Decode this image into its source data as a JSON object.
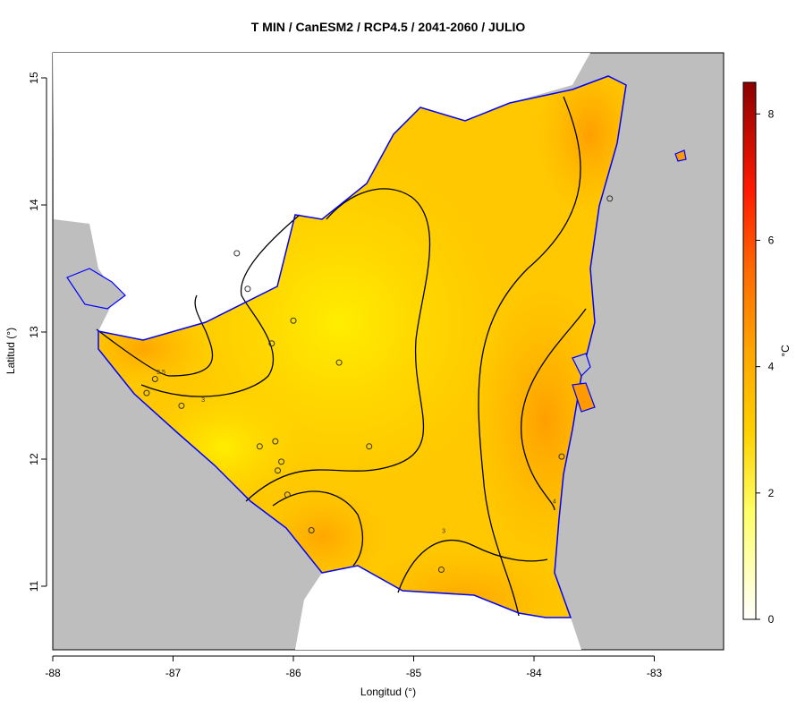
{
  "title": "T MIN / CanESM2 / RCP4.5 / 2041-2060 / JULIO",
  "xlabel": "Longitud (°)",
  "ylabel": "Latitud (°)",
  "colorbar_label": "°C",
  "colors": {
    "sea": "#bebebe",
    "coast": "#0000ff",
    "high": "#8b0000",
    "mid": "#ffa500",
    "low_mid": "#ffff00",
    "low": "#ffffff"
  },
  "chart_data": {
    "type": "heatmap",
    "title": "T MIN / CanESM2 / RCP4.5 / 2041-2060 / JULIO",
    "xlabel": "Longitud (°)",
    "ylabel": "Latitud (°)",
    "xlim": [
      -88,
      -82.4
    ],
    "ylim": [
      10.5,
      15.2
    ],
    "x_ticks": [
      -88,
      -87,
      -86,
      -85,
      -84,
      -83
    ],
    "y_ticks": [
      11,
      12,
      13,
      14,
      15
    ],
    "x_tick_labels": [
      "-88",
      "-87",
      "-86",
      "-85",
      "-84",
      "-83"
    ],
    "y_tick_labels": [
      "11",
      "12",
      "13",
      "14",
      "15"
    ],
    "colorbar": {
      "range": [
        0,
        8.5
      ],
      "ticks": [
        0,
        2,
        4,
        6,
        8
      ],
      "tick_labels": [
        "0",
        "2",
        "4",
        "6",
        "8"
      ],
      "label": "°C"
    },
    "contour_labels": [
      {
        "text": "3.5",
        "lon": -87.1,
        "lat": 12.67
      },
      {
        "text": "3",
        "lon": -86.75,
        "lat": 12.45
      },
      {
        "text": "3",
        "lon": -84.75,
        "lat": 11.42
      },
      {
        "text": "4",
        "lon": -83.83,
        "lat": 11.65
      }
    ],
    "stations": [
      {
        "lon": -86.47,
        "lat": 13.62
      },
      {
        "lon": -86.38,
        "lat": 13.34
      },
      {
        "lon": -86.0,
        "lat": 13.09
      },
      {
        "lon": -86.18,
        "lat": 12.91
      },
      {
        "lon": -85.62,
        "lat": 12.76
      },
      {
        "lon": -87.15,
        "lat": 12.63
      },
      {
        "lon": -87.22,
        "lat": 12.52
      },
      {
        "lon": -86.93,
        "lat": 12.42
      },
      {
        "lon": -86.28,
        "lat": 12.1
      },
      {
        "lon": -86.15,
        "lat": 12.14
      },
      {
        "lon": -85.37,
        "lat": 12.1
      },
      {
        "lon": -86.1,
        "lat": 11.98
      },
      {
        "lon": -86.13,
        "lat": 11.91
      },
      {
        "lon": -86.05,
        "lat": 11.72
      },
      {
        "lon": -85.85,
        "lat": 11.44
      },
      {
        "lon": -84.77,
        "lat": 11.13
      },
      {
        "lon": -83.77,
        "lat": 12.02
      },
      {
        "lon": -83.37,
        "lat": 14.05
      }
    ]
  }
}
